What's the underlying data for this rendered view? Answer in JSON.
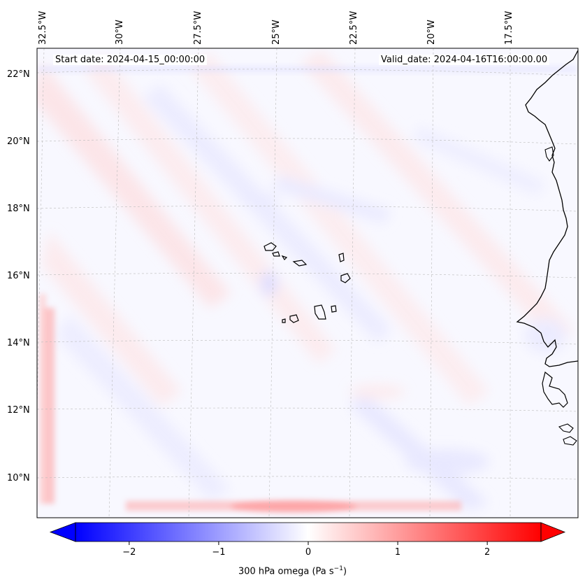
{
  "header": {
    "start_date": "Start date: 2024-04-15_00:00:00",
    "valid_date": "Valid_date: 2024-04-16T16:00:00.00"
  },
  "map": {
    "projection": "lambert-conformal",
    "lat_labels": [
      "22°N",
      "20°N",
      "18°N",
      "16°N",
      "14°N",
      "12°N",
      "10°N"
    ],
    "lon_labels": [
      "32.5°W",
      "30°W",
      "27.5°W",
      "25°W",
      "22.5°W",
      "20°W",
      "17.5°W"
    ],
    "features": [
      "Cape Verde islands",
      "West African coastline"
    ],
    "field": "300 hPa omega"
  },
  "colorbar": {
    "label": "300 hPa omega (Pa s",
    "label_sup": "−1",
    "label_close": ")",
    "ticks": [
      "−2",
      "−1",
      "0",
      "1",
      "2"
    ],
    "tick_values": [
      -2,
      -1,
      0,
      1,
      2
    ],
    "range": [
      -2.6,
      2.6
    ],
    "extend": "both",
    "colormap": "bwr",
    "color_min": "#0000ff",
    "color_mid": "#ffffff",
    "color_max": "#ff0000"
  }
}
